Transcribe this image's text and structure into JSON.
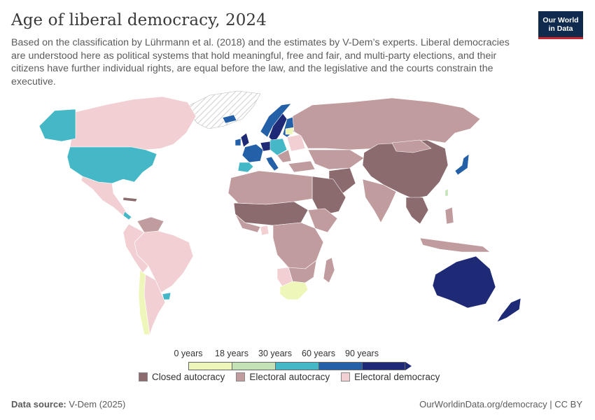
{
  "header": {
    "title": "Age of liberal democracy, 2024",
    "subtitle": "Based on the classification by Lührmann et al. (2018) and the estimates by V-Dem’s experts. Liberal democracies are understood here as political systems that hold meaningful, free and fair, and multi-party elections, and their citizens have further individual rights, are equal before the law, and the legislative and the courts constrain the executive.",
    "logo_line1": "Our World",
    "logo_line2": "in Data"
  },
  "legend": {
    "ticks": [
      "0 years",
      "18 years",
      "30 years",
      "60 years",
      "90 years"
    ],
    "scale_colors": [
      "#eef7b9",
      "#c3e3b6",
      "#44b8c6",
      "#2360a8",
      "#1f2a77"
    ],
    "categories": [
      {
        "label": "Closed autocracy",
        "color": "#8b6b6d"
      },
      {
        "label": "Electoral autocracy",
        "color": "#c19c9e"
      },
      {
        "label": "Electoral democracy",
        "color": "#f2cfd3"
      }
    ]
  },
  "footer": {
    "source_label": "Data source:",
    "source_value": "V-Dem (2025)",
    "link": "OurWorldinData.org/democracy | CC BY"
  }
}
